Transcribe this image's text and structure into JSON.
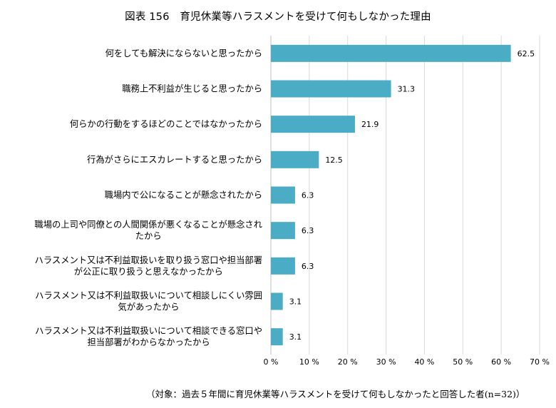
{
  "title": "図表 156　育児休業等ハラスメントを受けて何もしなかった理由",
  "note": "（対象：過去５年間に育児休業等ハラスメントを受けて何もしなかったと回答した者(n=32)）",
  "colors": {
    "bar": "#4bacc6",
    "grid": "#d9d9d9"
  },
  "chart_data": {
    "type": "bar",
    "orientation": "horizontal",
    "categories": [
      [
        "何をしても解決にならないと思ったから"
      ],
      [
        "職務上不利益が生じると思ったから"
      ],
      [
        "何らかの行動をするほどのことではなかったから"
      ],
      [
        "行為がさらにエスカレートすると思ったから"
      ],
      [
        "職場内で公になることが懸念されたから"
      ],
      [
        "職場の上司や同僚との人間関係が悪くなることが懸念され",
        "たから"
      ],
      [
        "ハラスメント又は不利益取扱いを取り扱う窓口や担当部署",
        "が公正に取り扱うと思えなかったから"
      ],
      [
        "ハラスメント又は不利益取扱いについて相談しにくい雰囲",
        "気があったから"
      ],
      [
        "ハラスメント又は不利益取扱いについて相談できる窓口や",
        "担当部署がわからなかったから"
      ]
    ],
    "values": [
      62.5,
      31.3,
      21.9,
      12.5,
      6.3,
      6.3,
      6.3,
      3.1,
      3.1
    ],
    "value_labels": [
      "62.5",
      "31.3",
      "21.9",
      "12.5",
      "6.3",
      "6.3",
      "6.3",
      "3.1",
      "3.1"
    ],
    "xlim": [
      0,
      70
    ],
    "xticks": [
      "0 %",
      "10 %",
      "20 %",
      "30 %",
      "40 %",
      "50 %",
      "60 %",
      "70 %"
    ],
    "grid": true,
    "legend": "none"
  }
}
